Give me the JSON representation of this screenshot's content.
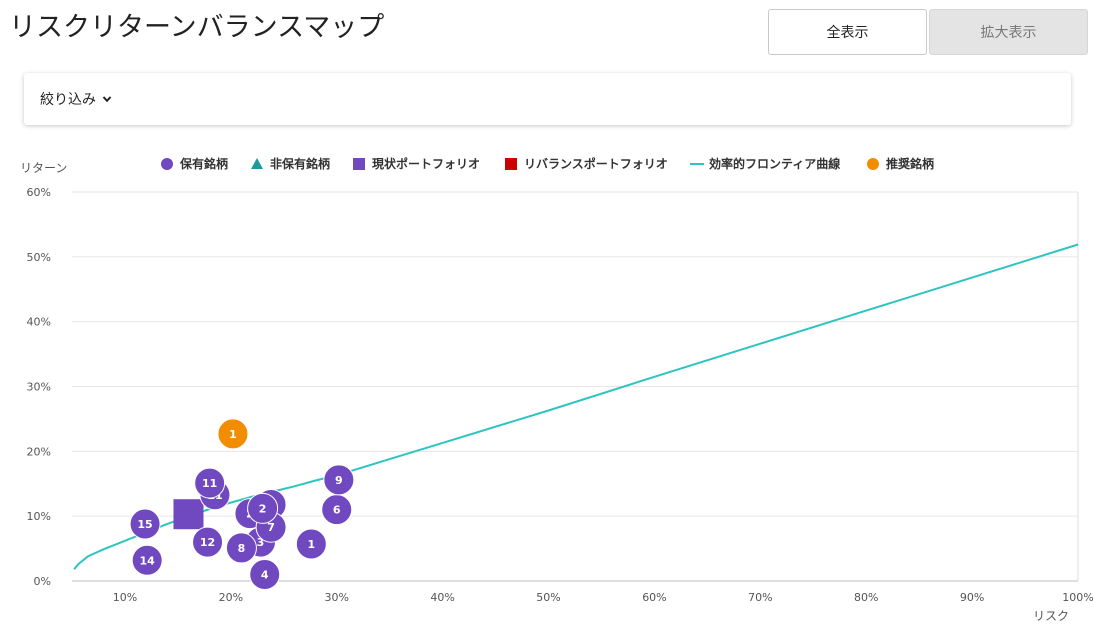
{
  "page": {
    "title": "リスクリターンバランスマップ",
    "buttons": {
      "show_all": "全表示",
      "zoom": "拡大表示"
    },
    "filter": {
      "label": "絞り込み"
    }
  },
  "colors": {
    "held": "#7048c0",
    "not_held": "#1f9a9a",
    "current_portfolio": "#7048c0",
    "rebalance_portfolio": "#cc0000",
    "frontier": "#2ec4c0",
    "recommended": "#f28c00"
  },
  "chart_data": {
    "type": "scatter",
    "xlabel": "リスク",
    "ylabel": "リターン",
    "xlim": [
      5,
      100
    ],
    "ylim": [
      0,
      60
    ],
    "x_ticks": [
      "10%",
      "20%",
      "30%",
      "40%",
      "50%",
      "60%",
      "70%",
      "80%",
      "90%",
      "100%"
    ],
    "y_ticks": [
      "0%",
      "10%",
      "20%",
      "30%",
      "40%",
      "50%",
      "60%"
    ],
    "grid": "horizontal",
    "legend_position": "top",
    "legend": [
      {
        "key": "held",
        "label": "保有銘柄",
        "shape": "circle"
      },
      {
        "key": "not_held",
        "label": "非保有銘柄",
        "shape": "triangle"
      },
      {
        "key": "current_portfolio",
        "label": "現状ポートフォリオ",
        "shape": "square"
      },
      {
        "key": "rebalance_portfolio",
        "label": "リバランスポートフォリオ",
        "shape": "square"
      },
      {
        "key": "frontier",
        "label": "効率的フロンティア曲線",
        "shape": "line"
      },
      {
        "key": "recommended",
        "label": "推奨銘柄",
        "shape": "circle"
      }
    ],
    "held": [
      {
        "label": "1",
        "x": 27.6,
        "y": 5.7
      },
      {
        "label": "2",
        "x": 21.8,
        "y": 10.4
      },
      {
        "label": "3",
        "x": 22.8,
        "y": 6.0
      },
      {
        "label": "4",
        "x": 23.2,
        "y": 1.0
      },
      {
        "label": "5",
        "x": 23.8,
        "y": 11.8
      },
      {
        "label": "6",
        "x": 30.0,
        "y": 11.0
      },
      {
        "label": "7",
        "x": 23.8,
        "y": 8.3
      },
      {
        "label": "8",
        "x": 21.0,
        "y": 5.1
      },
      {
        "label": "9",
        "x": 30.2,
        "y": 15.6
      },
      {
        "label": "11",
        "x": 18.5,
        "y": 13.3
      },
      {
        "label": "11",
        "x": 18.0,
        "y": 15.1
      },
      {
        "label": "12",
        "x": 17.8,
        "y": 6.0
      },
      {
        "label": "14",
        "x": 12.1,
        "y": 3.2
      },
      {
        "label": "15",
        "x": 11.9,
        "y": 8.8
      },
      {
        "label": "2",
        "x": 23.0,
        "y": 11.2
      }
    ],
    "current_portfolio": [
      {
        "x": 16.0,
        "y": 10.3
      }
    ],
    "recommended": [
      {
        "label": "1",
        "x": 20.2,
        "y": 22.7
      }
    ],
    "frontier": {
      "x": [
        5.2,
        5.6,
        6.5,
        8,
        10,
        12,
        14,
        16,
        18,
        20,
        22,
        24,
        26,
        28,
        30,
        35,
        40,
        50,
        60,
        70,
        80,
        90,
        100
      ],
      "y": [
        1.8,
        2.6,
        3.8,
        4.9,
        6.2,
        7.5,
        8.8,
        10.0,
        11.1,
        12.1,
        13.0,
        13.8,
        14.6,
        15.5,
        16.3,
        18.8,
        21.3,
        26.3,
        31.5,
        36.6,
        41.7,
        46.8,
        51.9
      ]
    }
  }
}
